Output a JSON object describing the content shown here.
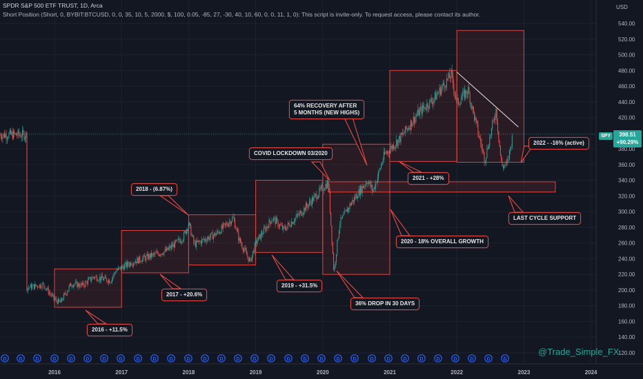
{
  "header": {
    "symbol_line": "SPDR S&P 500 ETF TRUST, 1D, Arca",
    "indicator_line": "Short Position (Short, 0, BYBIT:BTCUSD, 0, 0, 35, 10, 5, 2000, $, 100, 0.05, -85, 27, -30, 40, 10, 60, 0, 0, 11, 1, 0): This script is invite-only. To request access, please contact its author."
  },
  "price_scale": {
    "currency": "USD",
    "ticks": [
      "540.00",
      "520.00",
      "500.00",
      "480.00",
      "460.00",
      "440.00",
      "420.00",
      "400.00",
      "380.00",
      "360.00",
      "340.00",
      "320.00",
      "300.00",
      "280.00",
      "260.00",
      "240.00",
      "220.00",
      "200.00",
      "180.00",
      "160.00",
      "140.00",
      "120.00"
    ],
    "last_price_symbol": "SPY",
    "last_price": "398.51",
    "last_change": "+90.29%"
  },
  "time_scale": {
    "ticks": [
      "2016",
      "2017",
      "2018",
      "2019",
      "2020",
      "2021",
      "2022",
      "2023",
      "2024"
    ]
  },
  "annotations": [
    {
      "text": "2016 - +11.5%"
    },
    {
      "text": "2017 - +20.6%"
    },
    {
      "text": "2018 - (6.87%)"
    },
    {
      "text": "2019 - +31.5%"
    },
    {
      "text": "COVID LOCKDOWN 03/2020"
    },
    {
      "text": "36% DROP IN 30 DAYS"
    },
    {
      "text": "2020 - 18% OVERALL GROWTH"
    },
    {
      "text": "64% RECOVERY AFTER\n5 MONTHS (NEW HIGHS)"
    },
    {
      "text": "2021 - +28%"
    },
    {
      "text": "2022 - -16% (active)"
    },
    {
      "text": "LAST CYCLE SUPPORT"
    }
  ],
  "dividend_marker": "D",
  "watermark": "@Trade_Simple_FX",
  "colors": {
    "background": "#131722",
    "up": "#26a69a",
    "down": "#ef5350",
    "box_border": "#e0453f",
    "box_fill": "rgba(224,69,63,0.10)",
    "dividend": "#2962ff"
  },
  "chart_data": {
    "type": "candlestick",
    "ylim": [
      110,
      550
    ],
    "series_points": [
      [
        "2015-08",
        203
      ],
      [
        "2015-11",
        207
      ],
      [
        "2016-01",
        188
      ],
      [
        "2016-02",
        184
      ],
      [
        "2016-04",
        208
      ],
      [
        "2016-06",
        206
      ],
      [
        "2016-08",
        217
      ],
      [
        "2016-11",
        212
      ],
      [
        "2016-12",
        225
      ],
      [
        "2017-03",
        236
      ],
      [
        "2017-06",
        243
      ],
      [
        "2017-09",
        250
      ],
      [
        "2017-12",
        267
      ],
      [
        "2018-01",
        285
      ],
      [
        "2018-02",
        258
      ],
      [
        "2018-06",
        272
      ],
      [
        "2018-09",
        292
      ],
      [
        "2018-10",
        265
      ],
      [
        "2018-12",
        236
      ],
      [
        "2019-01",
        260
      ],
      [
        "2019-04",
        292
      ],
      [
        "2019-06",
        277
      ],
      [
        "2019-09",
        298
      ],
      [
        "2019-12",
        322
      ],
      [
        "2020-02",
        338
      ],
      [
        "2020-03",
        222
      ],
      [
        "2020-04",
        285
      ],
      [
        "2020-06",
        310
      ],
      [
        "2020-09",
        340
      ],
      [
        "2020-10",
        326
      ],
      [
        "2020-12",
        372
      ],
      [
        "2021-03",
        395
      ],
      [
        "2021-06",
        425
      ],
      [
        "2021-09",
        445
      ],
      [
        "2021-12",
        475
      ],
      [
        "2022-01",
        438
      ],
      [
        "2022-03",
        455
      ],
      [
        "2022-05",
        395
      ],
      [
        "2022-06",
        366
      ],
      [
        "2022-08",
        430
      ],
      [
        "2022-09",
        358
      ],
      [
        "2022-10",
        360
      ],
      [
        "2022-11",
        398
      ]
    ],
    "yearly_returns": [
      {
        "year": "2016",
        "return": "+11.5%"
      },
      {
        "year": "2017",
        "return": "+20.6%"
      },
      {
        "year": "2018",
        "return": "(6.87%)"
      },
      {
        "year": "2019",
        "return": "+31.5%"
      },
      {
        "year": "2020",
        "return": "18%"
      },
      {
        "year": "2021",
        "return": "+28%"
      },
      {
        "year": "2022",
        "return": "-16%"
      }
    ]
  }
}
